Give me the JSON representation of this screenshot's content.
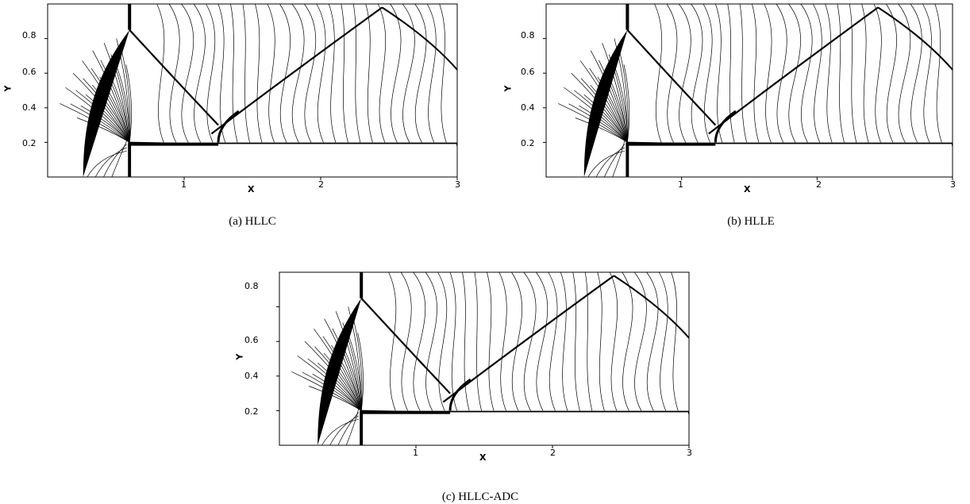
{
  "panels": [
    {
      "id": "a",
      "caption": "(a) HLLC",
      "xlabel": "X",
      "ylabel": "Y",
      "xticks": [
        "1",
        "2",
        "3"
      ],
      "yticks": [
        "0.2",
        "0.4",
        "0.6",
        "0.8"
      ]
    },
    {
      "id": "b",
      "caption": "(b) HLLE",
      "xlabel": "X",
      "ylabel": "Y",
      "xticks": [
        "1",
        "2",
        "3"
      ],
      "yticks": [
        "0.2",
        "0.4",
        "0.6",
        "0.8"
      ]
    },
    {
      "id": "c",
      "caption": "(c) HLLC-ADC",
      "xlabel": "X",
      "ylabel": "Y",
      "xticks": [
        "1",
        "2",
        "3"
      ],
      "yticks": [
        "0.2",
        "0.4",
        "0.6",
        "0.8"
      ]
    }
  ],
  "chart_data": [
    {
      "type": "contour",
      "title": "(a) HLLC",
      "xlabel": "X",
      "ylabel": "Y",
      "xlim": [
        0,
        3
      ],
      "ylim": [
        0,
        1
      ]
    },
    {
      "type": "contour",
      "title": "(b) HLLE",
      "xlabel": "X",
      "ylabel": "Y",
      "xlim": [
        0,
        3
      ],
      "ylim": [
        0,
        1
      ]
    },
    {
      "type": "contour",
      "title": "(c) HLLC-ADC",
      "xlabel": "X",
      "ylabel": "Y",
      "xlim": [
        0,
        3
      ],
      "ylim": [
        0,
        1
      ]
    }
  ]
}
